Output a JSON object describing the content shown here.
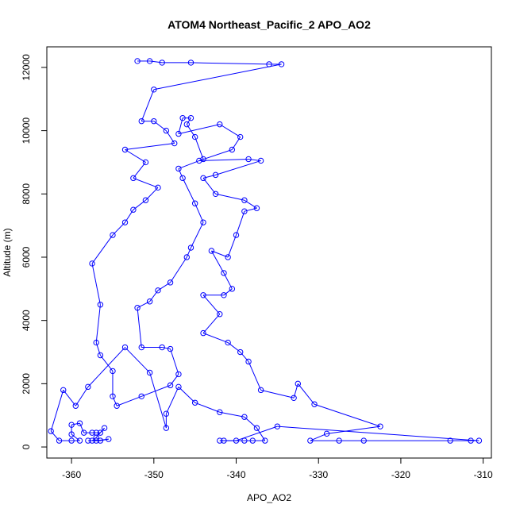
{
  "chart_data": {
    "type": "line",
    "title": "ATOM4 Northeast_Pacific_2 APO_AO2",
    "xlabel": "APO_AO2",
    "ylabel": "Altitude (m)",
    "xlim": [
      -363,
      -309
    ],
    "ylim": [
      -350,
      12650
    ],
    "x_ticks": [
      -360,
      -350,
      -340,
      -330,
      -320,
      -310
    ],
    "y_ticks": [
      0,
      2000,
      4000,
      6000,
      8000,
      10000,
      12000
    ],
    "grid": false,
    "legend": "none",
    "marker": "open-circle",
    "series": [
      {
        "color": "#0000ff",
        "points": [
          [
            -352.0,
            12200
          ],
          [
            -350.5,
            12200
          ],
          [
            -349.0,
            12150
          ],
          [
            -345.5,
            12150
          ],
          [
            -336.0,
            12100
          ],
          [
            -334.5,
            12100
          ],
          [
            -350.0,
            11300
          ],
          [
            -351.5,
            10300
          ],
          [
            -350.0,
            10300
          ],
          [
            -348.5,
            10000
          ],
          [
            -347.5,
            9600
          ],
          [
            -353.5,
            9400
          ],
          [
            -351.0,
            9000
          ],
          [
            -352.5,
            8500
          ],
          [
            -349.5,
            8200
          ],
          [
            -351.0,
            7800
          ],
          [
            -352.5,
            7500
          ],
          [
            -353.5,
            7100
          ],
          [
            -355.0,
            6700
          ],
          [
            -357.5,
            5800
          ],
          [
            -356.5,
            4500
          ],
          [
            -357.0,
            3300
          ],
          [
            -356.5,
            2900
          ],
          [
            -355.0,
            2400
          ],
          [
            -355.0,
            1600
          ],
          [
            -354.5,
            1300
          ],
          [
            -351.5,
            1600
          ],
          [
            -348.0,
            1950
          ],
          [
            -347.0,
            2300
          ],
          [
            -348.0,
            3100
          ],
          [
            -349.0,
            3150
          ],
          [
            -351.5,
            3150
          ],
          [
            -352.0,
            4400
          ],
          [
            -350.5,
            4600
          ],
          [
            -349.5,
            4950
          ],
          [
            -348.0,
            5200
          ],
          [
            -346.0,
            6000
          ],
          [
            -345.5,
            6300
          ],
          [
            -344.0,
            7100
          ],
          [
            -345.0,
            7700
          ],
          [
            -346.5,
            8500
          ],
          [
            -347.0,
            8800
          ],
          [
            -344.0,
            9100
          ],
          [
            -345.0,
            9800
          ],
          [
            -346.0,
            10200
          ],
          [
            -345.5,
            10400
          ],
          [
            -346.5,
            10400
          ],
          [
            -347.0,
            9900
          ],
          [
            -342.0,
            10200
          ],
          [
            -339.5,
            9800
          ],
          [
            -340.5,
            9400
          ],
          [
            -344.5,
            9050
          ],
          [
            -338.5,
            9100
          ],
          [
            -337.0,
            9050
          ],
          [
            -342.5,
            8600
          ],
          [
            -344.0,
            8500
          ],
          [
            -342.5,
            8000
          ],
          [
            -339.0,
            7800
          ],
          [
            -337.5,
            7550
          ],
          [
            -339.0,
            7450
          ],
          [
            -340.0,
            6700
          ],
          [
            -341.0,
            6000
          ],
          [
            -343.0,
            6200
          ],
          [
            -341.5,
            5500
          ],
          [
            -340.5,
            5000
          ],
          [
            -341.5,
            4800
          ],
          [
            -344.0,
            4800
          ],
          [
            -342.0,
            4200
          ],
          [
            -344.0,
            3600
          ],
          [
            -341.0,
            3300
          ],
          [
            -339.5,
            3000
          ],
          [
            -338.5,
            2700
          ],
          [
            -337.0,
            1800
          ],
          [
            -333.0,
            1550
          ],
          [
            -332.5,
            2000
          ],
          [
            -330.5,
            1350
          ],
          [
            -322.5,
            650
          ],
          [
            -329.0,
            420
          ],
          [
            -331.0,
            200
          ],
          [
            -327.5,
            200
          ],
          [
            -324.5,
            200
          ],
          [
            -314.0,
            200
          ],
          [
            -311.5,
            200
          ],
          [
            -310.5,
            200
          ],
          [
            -335.0,
            650
          ],
          [
            -340.0,
            200
          ],
          [
            -342.0,
            200
          ],
          [
            -341.5,
            200
          ],
          [
            -339.0,
            200
          ],
          [
            -338.0,
            200
          ],
          [
            -336.5,
            200
          ],
          [
            -337.5,
            600
          ],
          [
            -339.0,
            950
          ],
          [
            -342.0,
            1100
          ],
          [
            -345.0,
            1400
          ],
          [
            -347.0,
            1900
          ],
          [
            -348.5,
            1050
          ],
          [
            -348.5,
            600
          ],
          [
            -350.5,
            2350
          ],
          [
            -353.5,
            3150
          ],
          [
            -358.0,
            1900
          ],
          [
            -359.5,
            1300
          ],
          [
            -361.0,
            1800
          ],
          [
            -362.5,
            500
          ],
          [
            -361.5,
            200
          ],
          [
            -360.0,
            200
          ],
          [
            -359.0,
            200
          ],
          [
            -360.0,
            400
          ],
          [
            -360.0,
            700
          ],
          [
            -359.0,
            750
          ],
          [
            -358.5,
            450
          ],
          [
            -357.5,
            450
          ],
          [
            -357.0,
            450
          ],
          [
            -356.5,
            450
          ],
          [
            -356.0,
            600
          ],
          [
            -357.0,
            300
          ],
          [
            -357.5,
            200
          ],
          [
            -356.5,
            200
          ],
          [
            -355.5,
            250
          ],
          [
            -357.0,
            200
          ],
          [
            -358.0,
            200
          ]
        ]
      }
    ]
  }
}
